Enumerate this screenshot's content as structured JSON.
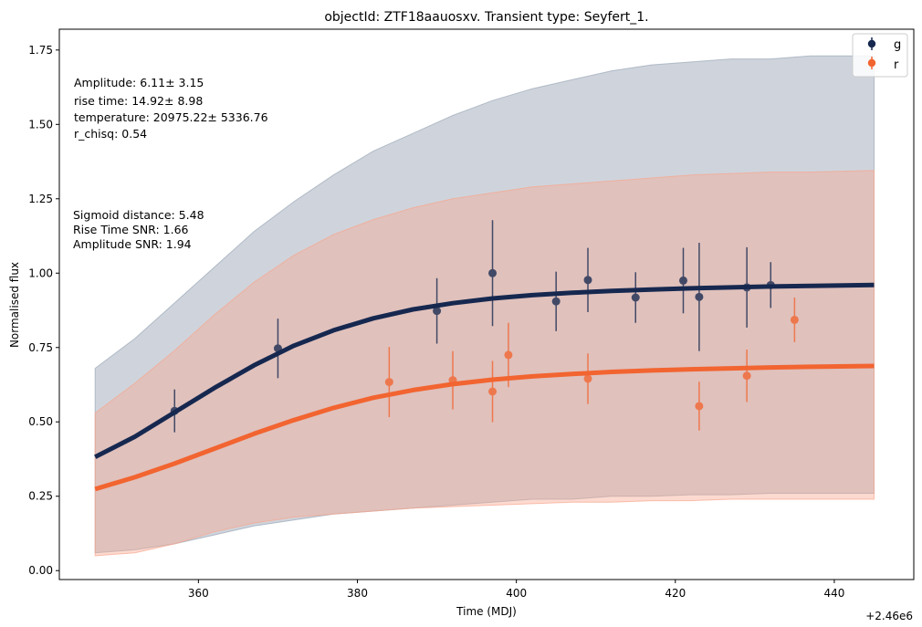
{
  "chart_data": {
    "type": "scatter",
    "title": "objectId: ZTF18aauosxv. Transient type: Seyfert_1.",
    "xlabel": "Time (MDJ)",
    "ylabel": "Normalised flux",
    "x_offset_label": "+2.46e6",
    "xlim": [
      342.5,
      450
    ],
    "ylim": [
      -0.03,
      1.82
    ],
    "xticks": [
      360,
      380,
      400,
      420,
      440
    ],
    "yticks": [
      0.0,
      0.25,
      0.5,
      0.75,
      1.0,
      1.25,
      1.5,
      1.75
    ],
    "xtick_labels": [
      "360",
      "380",
      "400",
      "420",
      "440"
    ],
    "ytick_labels": [
      "0.00",
      "0.25",
      "0.50",
      "0.75",
      "1.00",
      "1.25",
      "1.50",
      "1.75"
    ],
    "grid": false,
    "legend_position": "top-right",
    "annotations_fit": [
      "Amplitude: 6.11± 3.15",
      "rise time: 14.92± 8.98",
      "temperature: 20975.22± 5336.76",
      "r_chisq: 0.54"
    ],
    "annotations_stats": [
      "Sigmoid distance: 5.48",
      "Rise Time SNR: 1.66",
      "Amplitude SNR: 1.94"
    ],
    "series": [
      {
        "name": "g",
        "color": "#16284f",
        "points": [
          {
            "x": 357,
            "y": 0.537,
            "err": 0.072
          },
          {
            "x": 370,
            "y": 0.747,
            "err": 0.1
          },
          {
            "x": 390,
            "y": 0.873,
            "err": 0.11
          },
          {
            "x": 397,
            "y": 1.0,
            "err": 0.178
          },
          {
            "x": 405,
            "y": 0.905,
            "err": 0.1
          },
          {
            "x": 409,
            "y": 0.977,
            "err": 0.108
          },
          {
            "x": 415,
            "y": 0.918,
            "err": 0.085
          },
          {
            "x": 421,
            "y": 0.975,
            "err": 0.11
          },
          {
            "x": 423,
            "y": 0.92,
            "err": 0.182
          },
          {
            "x": 429,
            "y": 0.952,
            "err": 0.135
          },
          {
            "x": 432,
            "y": 0.96,
            "err": 0.077
          }
        ],
        "fit": {
          "x": [
            347,
            352,
            357,
            362,
            367,
            372,
            377,
            382,
            387,
            392,
            397,
            402,
            407,
            412,
            417,
            422,
            427,
            432,
            437,
            445
          ],
          "y": [
            0.382,
            0.45,
            0.532,
            0.614,
            0.69,
            0.756,
            0.808,
            0.848,
            0.878,
            0.899,
            0.915,
            0.926,
            0.934,
            0.94,
            0.945,
            0.949,
            0.952,
            0.955,
            0.957,
            0.96
          ]
        },
        "band": {
          "x": [
            347,
            352,
            357,
            362,
            367,
            372,
            377,
            382,
            387,
            392,
            397,
            402,
            407,
            412,
            417,
            422,
            427,
            432,
            437,
            445
          ],
          "upper": [
            0.68,
            0.78,
            0.9,
            1.02,
            1.14,
            1.24,
            1.33,
            1.41,
            1.47,
            1.53,
            1.58,
            1.62,
            1.65,
            1.68,
            1.7,
            1.71,
            1.72,
            1.72,
            1.73,
            1.73
          ],
          "lower": [
            0.06,
            0.07,
            0.09,
            0.12,
            0.15,
            0.17,
            0.19,
            0.2,
            0.21,
            0.22,
            0.23,
            0.24,
            0.24,
            0.25,
            0.25,
            0.255,
            0.255,
            0.26,
            0.26,
            0.26
          ]
        }
      },
      {
        "name": "r",
        "color": "#f26430",
        "points": [
          {
            "x": 384,
            "y": 0.634,
            "err": 0.118
          },
          {
            "x": 392,
            "y": 0.64,
            "err": 0.098
          },
          {
            "x": 397,
            "y": 0.602,
            "err": 0.103
          },
          {
            "x": 399,
            "y": 0.725,
            "err": 0.108
          },
          {
            "x": 409,
            "y": 0.645,
            "err": 0.085
          },
          {
            "x": 423,
            "y": 0.553,
            "err": 0.082
          },
          {
            "x": 429,
            "y": 0.655,
            "err": 0.088
          },
          {
            "x": 435,
            "y": 0.843,
            "err": 0.075
          }
        ],
        "fit": {
          "x": [
            347,
            352,
            357,
            362,
            367,
            372,
            377,
            382,
            387,
            392,
            397,
            402,
            407,
            412,
            417,
            422,
            427,
            432,
            437,
            445
          ],
          "y": [
            0.274,
            0.314,
            0.36,
            0.41,
            0.46,
            0.506,
            0.547,
            0.581,
            0.607,
            0.627,
            0.642,
            0.653,
            0.661,
            0.668,
            0.673,
            0.677,
            0.68,
            0.683,
            0.685,
            0.688
          ]
        },
        "band": {
          "x": [
            347,
            352,
            357,
            362,
            367,
            372,
            377,
            382,
            387,
            392,
            397,
            402,
            407,
            412,
            417,
            422,
            427,
            432,
            437,
            445
          ],
          "upper": [
            0.53,
            0.63,
            0.74,
            0.86,
            0.97,
            1.06,
            1.13,
            1.18,
            1.22,
            1.25,
            1.27,
            1.29,
            1.3,
            1.31,
            1.32,
            1.33,
            1.335,
            1.34,
            1.34,
            1.345
          ],
          "lower": [
            0.05,
            0.06,
            0.09,
            0.13,
            0.16,
            0.18,
            0.19,
            0.2,
            0.21,
            0.215,
            0.22,
            0.225,
            0.23,
            0.23,
            0.235,
            0.235,
            0.24,
            0.24,
            0.24,
            0.24
          ]
        }
      }
    ]
  }
}
